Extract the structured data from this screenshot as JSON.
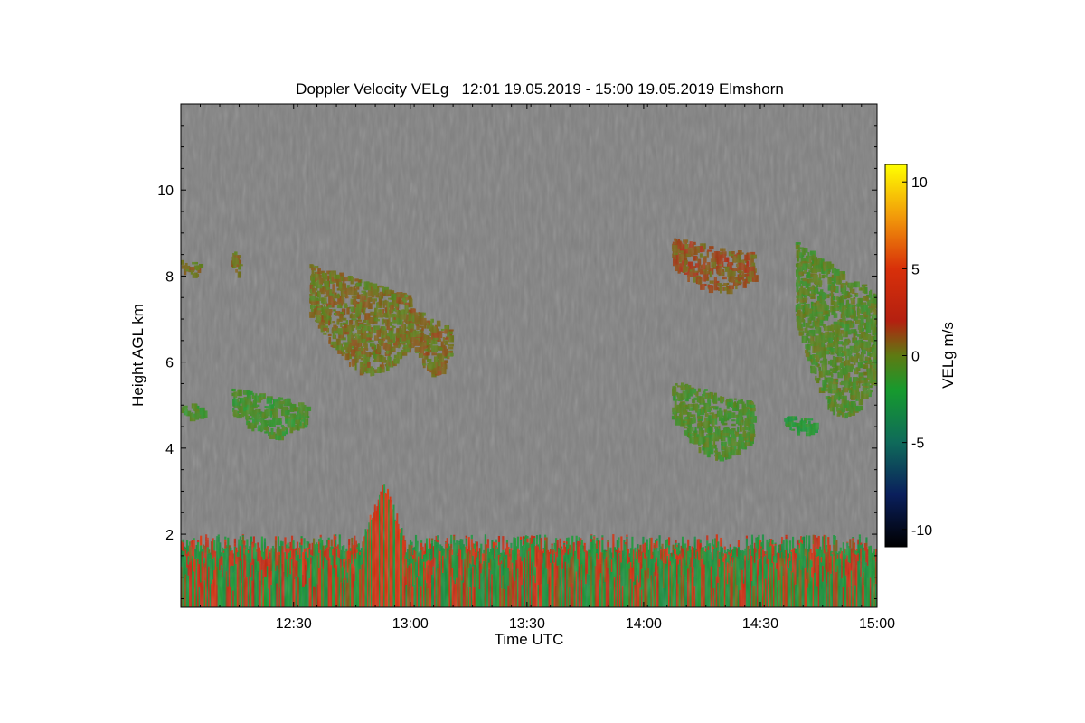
{
  "chart_data": {
    "type": "heatmap",
    "title": "Doppler Velocity VELg   12:01 19.05.2019 - 15:00 19.05.2019 Elmshorn",
    "xlabel": "Time UTC",
    "ylabel": "Height AGL km",
    "x_ticks": [
      "12:30",
      "13:00",
      "13:30",
      "14:00",
      "14:30",
      "15:00"
    ],
    "x_tick_values_min": [
      750,
      780,
      810,
      840,
      870,
      900
    ],
    "xlim_min": [
      721,
      900
    ],
    "y_ticks": [
      "2",
      "4",
      "6",
      "8",
      "10"
    ],
    "y_tick_values": [
      2,
      4,
      6,
      8,
      10
    ],
    "ylim": [
      0.3,
      12.0
    ],
    "background_value_color": "#808080",
    "colorbar": {
      "label": "VELg m/s",
      "ticks": [
        "10",
        "5",
        "0",
        "-5",
        "-10"
      ],
      "tick_values": [
        10,
        5,
        0,
        -5,
        -10
      ],
      "range": [
        -11,
        11
      ],
      "stops": [
        {
          "v": -11,
          "color": "#000000"
        },
        {
          "v": -8,
          "color": "#0a1f5c"
        },
        {
          "v": -5,
          "color": "#0f6a5a"
        },
        {
          "v": -2,
          "color": "#169a2e"
        },
        {
          "v": 0,
          "color": "#5e7a12"
        },
        {
          "v": 2,
          "color": "#b42010"
        },
        {
          "v": 5,
          "color": "#d8300a"
        },
        {
          "v": 8,
          "color": "#f29a0a"
        },
        {
          "v": 11,
          "color": "#ffff00"
        }
      ]
    },
    "cloud_layers": [
      {
        "t_start": 721,
        "t_end": 726,
        "h_min": 8.1,
        "h_max": 8.4,
        "velocity": 0.5
      },
      {
        "t_start": 734,
        "t_end": 736,
        "h_min": 8.1,
        "h_max": 8.7,
        "velocity": 0.5
      },
      {
        "t_start": 754,
        "t_end": 780,
        "h_min": 6.2,
        "h_max": 8.3,
        "velocity": 0.3
      },
      {
        "t_start": 780,
        "t_end": 790,
        "h_min": 6.0,
        "h_max": 7.3,
        "velocity": 0.5
      },
      {
        "t_start": 721,
        "t_end": 727,
        "h_min": 4.8,
        "h_max": 5.1,
        "velocity": -1.0
      },
      {
        "t_start": 734,
        "t_end": 753,
        "h_min": 4.5,
        "h_max": 5.4,
        "velocity": -1.0
      },
      {
        "t_start": 847,
        "t_end": 868,
        "h_min": 7.9,
        "h_max": 8.9,
        "velocity": 1.0
      },
      {
        "t_start": 847,
        "t_end": 868,
        "h_min": 4.1,
        "h_max": 5.6,
        "velocity": -0.7
      },
      {
        "t_start": 876,
        "t_end": 884,
        "h_min": 4.4,
        "h_max": 4.8,
        "velocity": -2.0
      },
      {
        "t_start": 879,
        "t_end": 900,
        "h_min": 5.4,
        "h_max": 8.8,
        "velocity": -0.5
      }
    ],
    "boundary_layer": {
      "t_start": 721,
      "t_end": 900,
      "h_min": 0.3,
      "h_max": 1.8,
      "velocity_range": [
        -3,
        5
      ]
    },
    "convective_plume": {
      "t_start": 768,
      "t_end": 778,
      "h_min": 0.3,
      "h_max": 3.3,
      "velocity": 3.5
    }
  }
}
